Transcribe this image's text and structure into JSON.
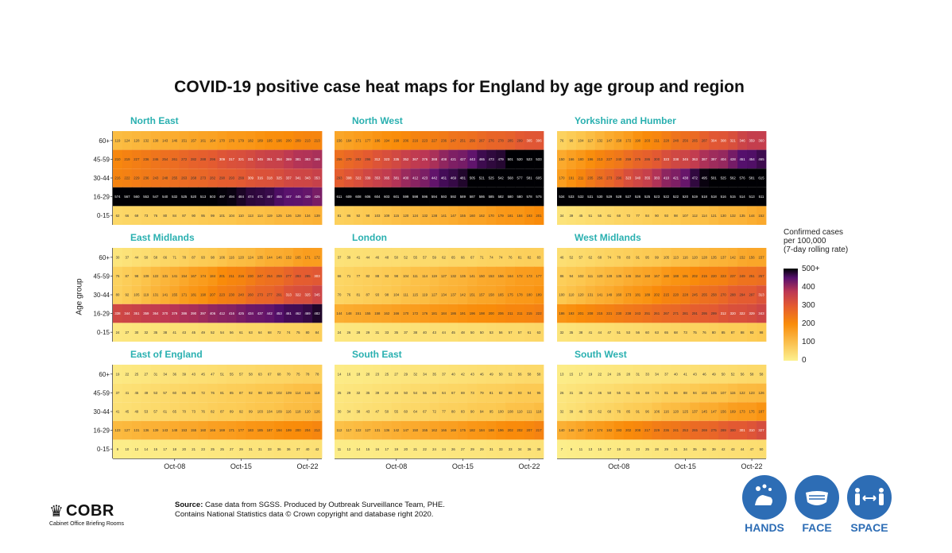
{
  "title": "COVID-19 positive case heat maps for England by age group and region",
  "chart_data": {
    "type": "heatmap",
    "y_axis_label": "Age group",
    "age_groups": [
      "60+",
      "45-59",
      "30-44",
      "16-29",
      "0-15"
    ],
    "x_tick_labels": [
      "Oct-08",
      "Oct-15",
      "Oct-22"
    ],
    "days_per_panel": 22,
    "legend": {
      "title_lines": [
        "Confirmed cases",
        "per 100,000",
        "(7-day rolling rate)"
      ],
      "ticks": [
        "500+",
        "400",
        "300",
        "200",
        "100",
        "0"
      ],
      "range": [
        0,
        500
      ]
    },
    "panels": [
      {
        "name": "North East",
        "rates": {
          "60+": [
            119,
            216
          ],
          "45-59": [
            210,
            394
          ],
          "30-44": [
            216,
            353
          ],
          "16-29": [
            574,
            429
          ],
          "0-15": [
            62,
            137
          ]
        }
      },
      {
        "name": "North West",
        "rates": {
          "60+": [
            156,
            310
          ],
          "45-59": [
            256,
            540
          ],
          "30-44": [
            293,
            605
          ],
          "16-29": [
            611,
            576
          ],
          "0-15": [
            81,
            198
          ]
        }
      },
      {
        "name": "Yorkshire and Humber",
        "rates": {
          "60+": [
            76,
            368
          ],
          "45-59": [
            150,
            473
          ],
          "30-44": [
            170,
            615
          ],
          "16-29": [
            534,
            512
          ],
          "0-15": [
            34,
            149
          ]
        }
      },
      {
        "name": "East Midlands",
        "rates": {
          "60+": [
            30,
            176
          ],
          "45-59": [
            76,
            309
          ],
          "30-44": [
            80,
            345
          ],
          "16-29": [
            338,
            478
          ],
          "0-15": [
            24,
            82
          ]
        }
      },
      {
        "name": "London",
        "rates": {
          "60+": [
            37,
            84
          ],
          "45-59": [
            66,
            180
          ],
          "30-44": [
            70,
            189
          ],
          "16-29": [
            144,
            220
          ],
          "0-15": [
            24,
            62
          ]
        }
      },
      {
        "name": "West Midlands",
        "rates": {
          "60+": [
            46,
            160
          ],
          "45-59": [
            86,
            261
          ],
          "30-44": [
            100,
            313
          ],
          "16-29": [
            186,
            339
          ],
          "0-15": [
            32,
            96
          ]
        }
      },
      {
        "name": "East of England",
        "rates": {
          "60+": [
            19,
            80
          ],
          "45-59": [
            37,
            120
          ],
          "30-44": [
            41,
            126
          ],
          "16-29": [
            123,
            210
          ],
          "0-15": [
            9,
            41
          ]
        }
      },
      {
        "name": "South East",
        "rates": {
          "60+": [
            14,
            59
          ],
          "45-59": [
            25,
            98
          ],
          "30-44": [
            30,
            118
          ],
          "16-29": [
            112,
            214
          ],
          "0-15": [
            11,
            37
          ]
        }
      },
      {
        "name": "South West",
        "rates": {
          "60+": [
            13,
            59
          ],
          "45-59": [
            26,
            129
          ],
          "30-44": [
            32,
            187
          ],
          "16-29": [
            140,
            322
          ],
          "0-15": [
            7,
            49
          ]
        }
      }
    ]
  },
  "footer": {
    "source_label": "Source:",
    "source_text": "Case data from SGSS. Produced by Outbreak Surveillance Team, PHE.",
    "source_line2": "Contains National Statistics data © Crown copyright and database right 2020.",
    "cobr_name": "COBR",
    "cobr_subtitle": "Cabinet Office Briefing Rooms",
    "campaign": [
      "HANDS",
      "FACE",
      "SPACE"
    ]
  },
  "colors": {
    "panel_title": "#2ab0b0",
    "campaign_blue": "#2d6db5"
  }
}
